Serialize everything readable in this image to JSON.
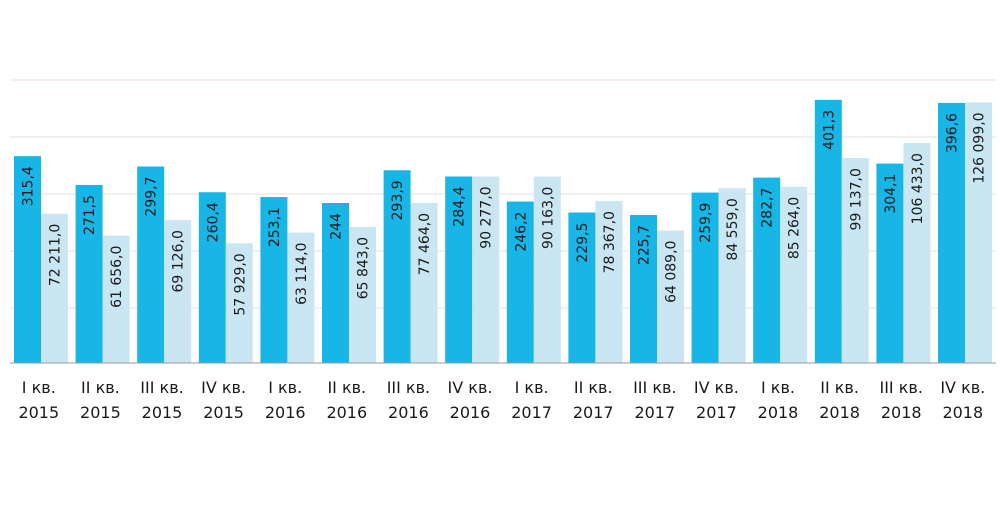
{
  "chart_data": {
    "type": "bar",
    "title": "",
    "xlabel": "",
    "ylabel": "",
    "grid": true,
    "legend": "none",
    "categories": [
      [
        "I кв.",
        "2015"
      ],
      [
        "II кв.",
        "2015"
      ],
      [
        "III кв.",
        "2015"
      ],
      [
        "IV кв.",
        "2015"
      ],
      [
        "I кв.",
        "2016"
      ],
      [
        "II кв.",
        "2016"
      ],
      [
        "III кв.",
        "2016"
      ],
      [
        "IV кв.",
        "2016"
      ],
      [
        "I кв.",
        "2017"
      ],
      [
        "II кв.",
        "2017"
      ],
      [
        "III кв.",
        "2017"
      ],
      [
        "IV кв.",
        "2017"
      ],
      [
        "I кв.",
        "2018"
      ],
      [
        "II кв.",
        "2018"
      ],
      [
        "III кв.",
        "2018"
      ],
      [
        "IV кв.",
        "2018"
      ]
    ],
    "series": [
      {
        "color": "#17b6e6",
        "ylim": [
          0,
          520
        ],
        "values": [
          315.4,
          271.5,
          299.7,
          260.4,
          253.1,
          244,
          293.9,
          284.4,
          246.2,
          229.5,
          225.7,
          259.9,
          282.7,
          401.3,
          304.1,
          396.6
        ],
        "labels": [
          "315,4",
          "271,5",
          "299,7",
          "260,4",
          "253,1",
          "244",
          "293,9",
          "284,4",
          "246,2",
          "229,5",
          "225,7",
          "259,9",
          "282,7",
          "401,3",
          "304,1",
          "396,6"
        ]
      },
      {
        "color": "#c9e6f2",
        "ylim": [
          0,
          165000
        ],
        "values": [
          72211.0,
          61656.0,
          69126.0,
          57929.0,
          63114.0,
          65843.0,
          77464.0,
          90277.0,
          90163.0,
          78367.0,
          64089.0,
          84559.0,
          85264.0,
          99137.0,
          106433.0,
          126099.0
        ],
        "labels": [
          "72 211,0",
          "61 656,0",
          "69 126,0",
          "57 929,0",
          "63 114,0",
          "65 843,0",
          "77 464,0",
          "90 277,0",
          "90 163,0",
          "78 367,0",
          "64 089,0",
          "84 559,0",
          "85 264,0",
          "99 137,0",
          "106 433,0",
          "126 099,0"
        ]
      }
    ]
  }
}
